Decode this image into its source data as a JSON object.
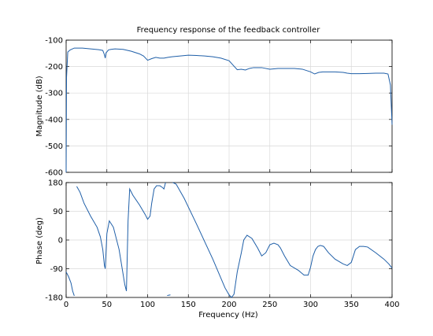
{
  "chart_data": {
    "type": "line",
    "title": "Frequency response of the feedback controller",
    "xlabel": "Frequency  (Hz)",
    "xlim": [
      0,
      400
    ],
    "xticks": [
      0,
      50,
      100,
      150,
      200,
      250,
      300,
      350,
      400
    ],
    "grid": true,
    "subplots": [
      {
        "name": "magnitude",
        "ylabel": "Magnitude (dB)",
        "ylim": [
          -600,
          -100
        ],
        "yticks": [
          -100,
          -200,
          -300,
          -400,
          -500,
          -600
        ],
        "series": [
          {
            "x": [
              0,
              0.5,
              2,
              5,
              10,
              20,
              30,
              40,
              45,
              47,
              48,
              49,
              52,
              55,
              60,
              70,
              80,
              90,
              95,
              100,
              105,
              110,
              115,
              120,
              125,
              130,
              140,
              150,
              160,
              170,
              180,
              190,
              200,
              205,
              210,
              215,
              220,
              225,
              230,
              240,
              250,
              260,
              270,
              280,
              290,
              300,
              305,
              310,
              315,
              320,
              330,
              340,
              345,
              350,
              355,
              360,
              370,
              380,
              390,
              395,
              398,
              400
            ],
            "values": [
              -600,
              -240,
              -145,
              -137,
              -130,
              -130,
              -133,
              -136,
              -139,
              -155,
              -168,
              -148,
              -137,
              -135,
              -133,
              -135,
              -142,
              -152,
              -160,
              -176,
              -170,
              -165,
              -168,
              -168,
              -165,
              -163,
              -160,
              -157,
              -158,
              -160,
              -163,
              -168,
              -178,
              -195,
              -212,
              -210,
              -213,
              -207,
              -204,
              -204,
              -210,
              -207,
              -207,
              -207,
              -210,
              -220,
              -228,
              -222,
              -220,
              -220,
              -220,
              -222,
              -225,
              -227,
              -227,
              -227,
              -226,
              -225,
              -225,
              -228,
              -270,
              -420
            ]
          }
        ]
      },
      {
        "name": "phase",
        "ylabel": "Phase (deg)",
        "ylim": [
          -180,
          180
        ],
        "yticks": [
          180,
          90,
          0,
          -90,
          -180
        ],
        "series": [
          {
            "x": [
              0,
              3,
              6,
              8,
              10,
              13,
              17,
              22,
              30,
              38,
              42,
              45,
              47,
              48,
              50,
              53,
              58,
              65,
              72,
              74,
              76,
              78,
              82,
              90,
              97,
              100,
              103,
              105,
              108,
              111,
              115,
              118,
              120,
              122,
              124,
              126,
              128,
              131,
              135,
              145,
              160,
              180,
              195,
              200,
              203,
              206,
              210,
              215,
              218,
              222,
              228,
              235,
              240,
              245,
              250,
              255,
              260,
              263,
              268,
              275,
              285,
              292,
              297,
              300,
              303,
              306,
              309,
              312,
              316,
              322,
              330,
              340,
              345,
              350,
              355,
              360,
              365,
              370,
              380,
              390,
              396,
              400
            ],
            "values": [
              -100,
              -115,
              -135,
              -160,
              -175,
              168,
              150,
              115,
              75,
              40,
              10,
              -30,
              -80,
              -90,
              20,
              60,
              40,
              -30,
              -140,
              -160,
              60,
              160,
              140,
              110,
              80,
              65,
              75,
              115,
              160,
              170,
              170,
              165,
              160,
              180,
              -174,
              -173,
              -172,
              180,
              175,
              130,
              50,
              -60,
              -150,
              -172,
              -180,
              -170,
              -100,
              -40,
              0,
              15,
              5,
              -25,
              -50,
              -40,
              -15,
              -10,
              -15,
              -25,
              -50,
              -80,
              -95,
              -110,
              -110,
              -85,
              -50,
              -30,
              -20,
              -17,
              -20,
              -40,
              -60,
              -75,
              -80,
              -70,
              -30,
              -20,
              -20,
              -22,
              -40,
              -60,
              -75,
              -88
            ]
          }
        ]
      }
    ]
  }
}
